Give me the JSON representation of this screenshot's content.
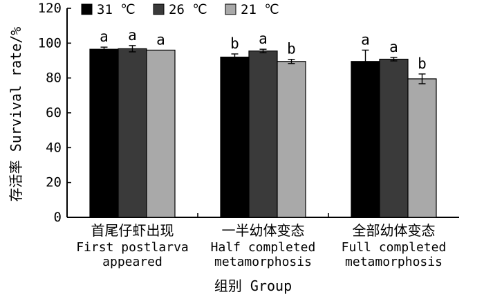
{
  "chart_data": {
    "type": "bar",
    "categories": [
      {
        "cn": "首尾仔虾出现",
        "en_lines": [
          "First postlarva",
          "appeared"
        ]
      },
      {
        "cn": "一半幼体变态",
        "en_lines": [
          "Half completed",
          "metamorphosis"
        ]
      },
      {
        "cn": "全部幼体变态",
        "en_lines": [
          "Full completed",
          "metamorphosis"
        ]
      }
    ],
    "series": [
      {
        "name": "31 ℃",
        "color": "#000000",
        "values": [
          96.5,
          92.0,
          89.5
        ],
        "errors": [
          1.2,
          1.8,
          6.5
        ],
        "labels": [
          "a",
          "b",
          "a"
        ]
      },
      {
        "name": "26 ℃",
        "color": "#3a3a3a",
        "values": [
          96.8,
          95.5,
          90.8
        ],
        "errors": [
          1.8,
          1.0,
          1.0
        ],
        "labels": [
          "a",
          "a",
          "a"
        ]
      },
      {
        "name": "21 ℃",
        "color": "#a9a9a9",
        "values": [
          96.0,
          89.5,
          79.5
        ],
        "errors": [
          0.0,
          1.2,
          2.8
        ],
        "labels": [
          "a",
          "b",
          "b"
        ]
      }
    ],
    "ylabel": "存活率 Survival rate/%",
    "xlabel": "组别 Group",
    "ylim": [
      0,
      120
    ],
    "yticks": [
      0,
      20,
      40,
      60,
      80,
      100,
      120
    ],
    "legend_position": "top"
  }
}
